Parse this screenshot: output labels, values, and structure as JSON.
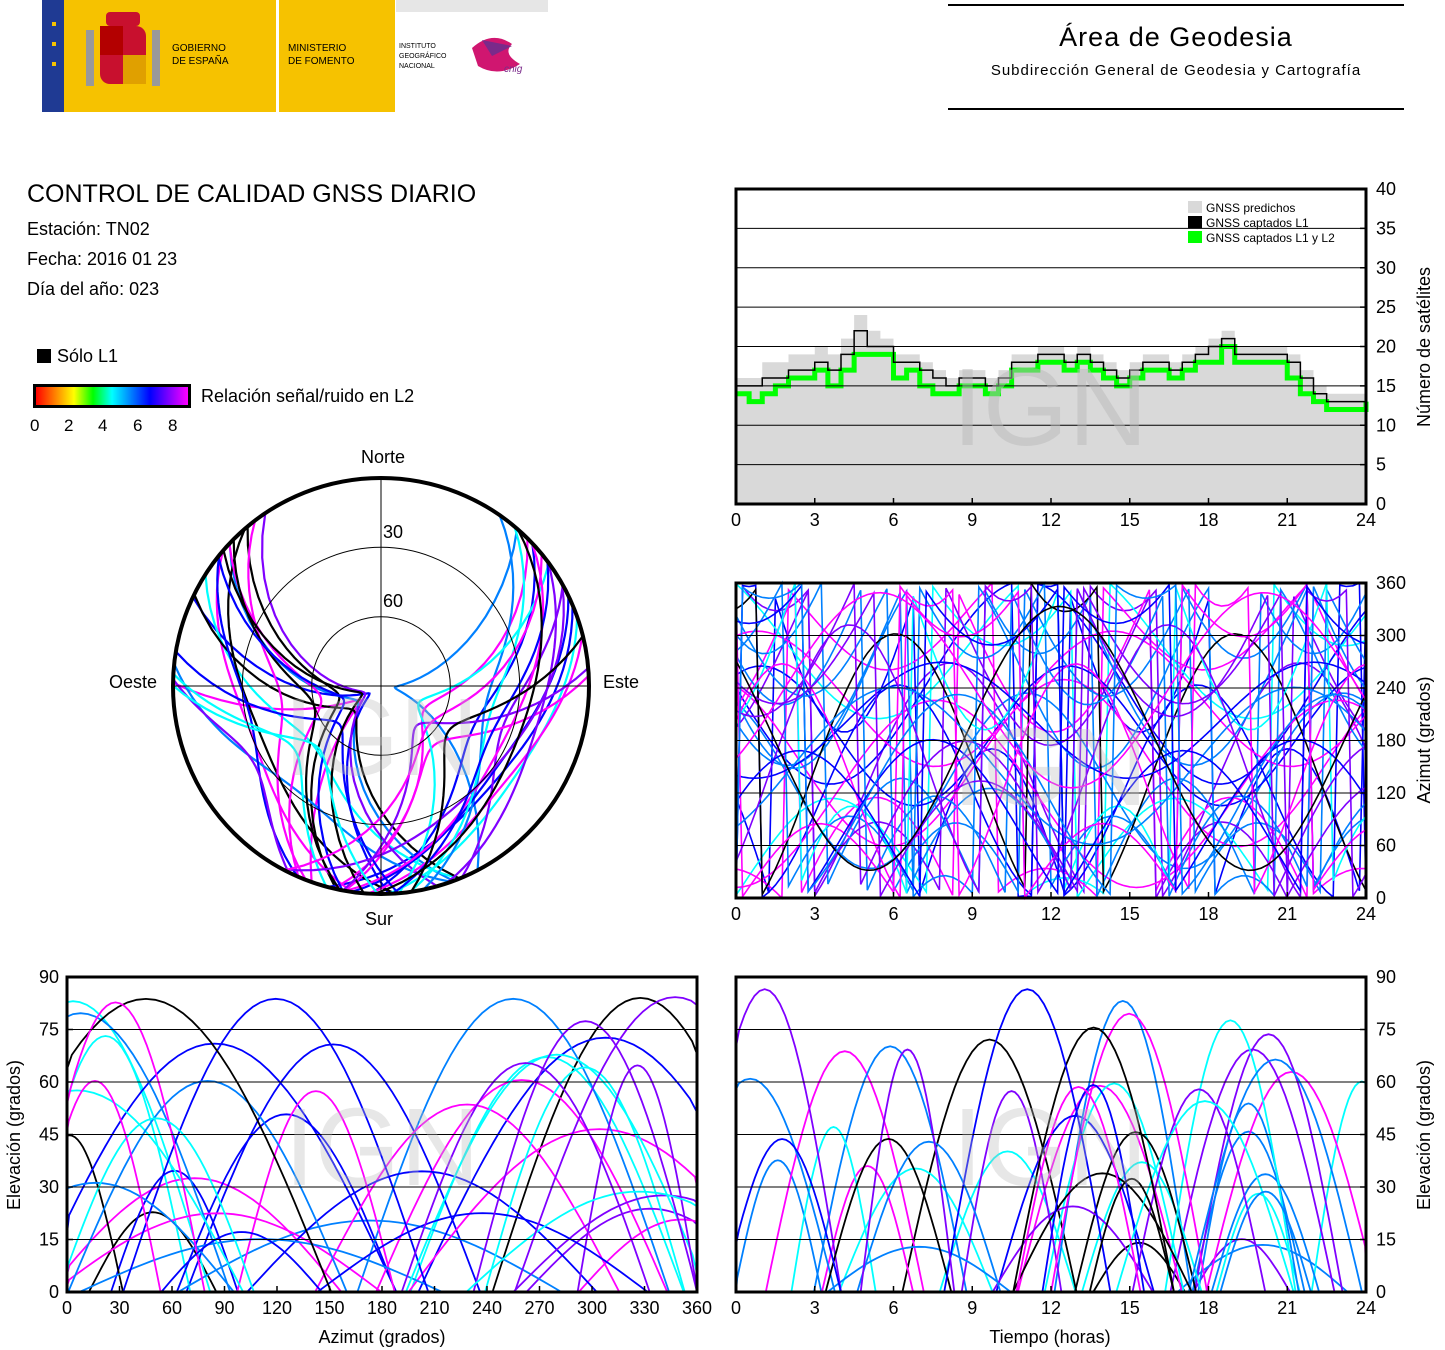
{
  "header": {
    "logo_gob_line1": "GOBIERNO",
    "logo_gob_line2": "DE ESPAÑA",
    "logo_min_line1": "MINISTERIO",
    "logo_min_line2": "DE FOMENTO",
    "logo_ign_line1": "INSTITUTO",
    "logo_ign_line2": "GEOGRÁFICO",
    "logo_ign_line3": "NACIONAL",
    "logo_cnig": "cnig",
    "area_title": "Área de Geodesia",
    "area_subtitle": "Subdirección General de Geodesia y Cartografía"
  },
  "info": {
    "title": "CONTROL DE CALIDAD GNSS DIARIO",
    "station": "Estación: TN02",
    "date": "Fecha: 2016 01 23",
    "doy": "Día del año: 023"
  },
  "legend": {
    "l1_only": "Sólo L1",
    "snr_label": "Relación señal/ruido en L2",
    "snr_ticks": [
      "0",
      "2",
      "4",
      "6",
      "8"
    ]
  },
  "watermark": "IGN",
  "colors": {
    "predicted": "#d9d9d9",
    "l1": "#000000",
    "l1l2": "#00ff00",
    "snr_scale": [
      "#ff0000",
      "#ff8000",
      "#ffff00",
      "#00ff00",
      "#00ffff",
      "#0080ff",
      "#0000ff",
      "#8000ff",
      "#ff00ff"
    ]
  },
  "chart_data": [
    {
      "type": "line",
      "id": "satellites",
      "ylabel": "Número de satélites",
      "xlim": [
        0,
        24
      ],
      "ylim": [
        0,
        40
      ],
      "x_ticks": [
        "0",
        "3",
        "6",
        "9",
        "12",
        "15",
        "18",
        "21",
        "24"
      ],
      "y_ticks": [
        "0",
        "5",
        "10",
        "15",
        "20",
        "25",
        "30",
        "35",
        "40"
      ],
      "grid": true,
      "legend_position": "top-right",
      "legend": [
        "GNSS predichos",
        "GNSS captados L1",
        "GNSS captados L1 y L2"
      ],
      "x": [
        0,
        0.5,
        1,
        1.5,
        2,
        2.5,
        3,
        3.5,
        4,
        4.5,
        5,
        5.5,
        6,
        6.5,
        7,
        7.5,
        8,
        8.5,
        9,
        9.5,
        10,
        10.5,
        11,
        11.5,
        12,
        12.5,
        13,
        13.5,
        14,
        14.5,
        15,
        15.5,
        16,
        16.5,
        17,
        17.5,
        18,
        18.5,
        19,
        19.5,
        20,
        20.5,
        21,
        21.5,
        22,
        22.5,
        23,
        23.5,
        24
      ],
      "series": [
        {
          "name": "GNSS predichos",
          "values": [
            16,
            16,
            18,
            18,
            19,
            19,
            20,
            19,
            21,
            24,
            22,
            21,
            19,
            19,
            18,
            17,
            16,
            17,
            17,
            16,
            17,
            19,
            19,
            20,
            20,
            19,
            20,
            19,
            18,
            17,
            18,
            19,
            19,
            18,
            19,
            20,
            21,
            22,
            20,
            20,
            20,
            20,
            19,
            17,
            15,
            14,
            14,
            14,
            15
          ]
        },
        {
          "name": "GNSS captados L1",
          "values": [
            15,
            15,
            16,
            16,
            17,
            17,
            18,
            17,
            19,
            22,
            20,
            20,
            18,
            18,
            17,
            16,
            15,
            16,
            16,
            15,
            16,
            18,
            18,
            19,
            19,
            18,
            19,
            18,
            17,
            16,
            17,
            18,
            18,
            17,
            18,
            19,
            20,
            21,
            19,
            19,
            19,
            19,
            18,
            16,
            14,
            13,
            13,
            13,
            14
          ]
        },
        {
          "name": "GNSS captados L1 y L2",
          "values": [
            14,
            13,
            14,
            15,
            16,
            16,
            17,
            15,
            17,
            19,
            19,
            19,
            16,
            17,
            15,
            14,
            14,
            15,
            15,
            14,
            15,
            17,
            17,
            18,
            18,
            17,
            18,
            17,
            16,
            15,
            16,
            17,
            17,
            16,
            17,
            18,
            18,
            20,
            18,
            18,
            18,
            18,
            16,
            14,
            13,
            12,
            12,
            12,
            13
          ]
        }
      ]
    },
    {
      "type": "scatter",
      "id": "skyplot",
      "radial_ticks": [
        "30",
        "60"
      ],
      "direction_labels": {
        "north": "Norte",
        "south": "Sur",
        "east": "Este",
        "west": "Oeste"
      },
      "note_axes": "azimuth 0-360, elevation 0-90"
    },
    {
      "type": "scatter",
      "id": "azimuth-time",
      "ylabel": "Azimut (grados)",
      "xlim": [
        0,
        24
      ],
      "ylim": [
        0,
        360
      ],
      "x_ticks": [
        "0",
        "3",
        "6",
        "9",
        "12",
        "15",
        "18",
        "21",
        "24"
      ],
      "y_ticks": [
        "0",
        "60",
        "120",
        "180",
        "240",
        "300",
        "360"
      ],
      "grid": true
    },
    {
      "type": "scatter",
      "id": "elevation-azimuth",
      "xlabel": "Azimut (grados)",
      "ylabel": "Elevación (grados)",
      "xlim": [
        0,
        360
      ],
      "ylim": [
        0,
        90
      ],
      "x_ticks": [
        "0",
        "30",
        "60",
        "90",
        "120",
        "150",
        "180",
        "210",
        "240",
        "270",
        "300",
        "330",
        "360"
      ],
      "y_ticks": [
        "0",
        "15",
        "30",
        "45",
        "60",
        "75",
        "90"
      ],
      "grid": true
    },
    {
      "type": "scatter",
      "id": "elevation-time",
      "xlabel": "Tiempo (horas)",
      "ylabel": "Elevación (grados)",
      "xlim": [
        0,
        24
      ],
      "ylim": [
        0,
        90
      ],
      "x_ticks": [
        "0",
        "3",
        "6",
        "9",
        "12",
        "15",
        "18",
        "21",
        "24"
      ],
      "y_ticks": [
        "0",
        "15",
        "30",
        "45",
        "60",
        "75",
        "90"
      ],
      "grid": true
    }
  ]
}
